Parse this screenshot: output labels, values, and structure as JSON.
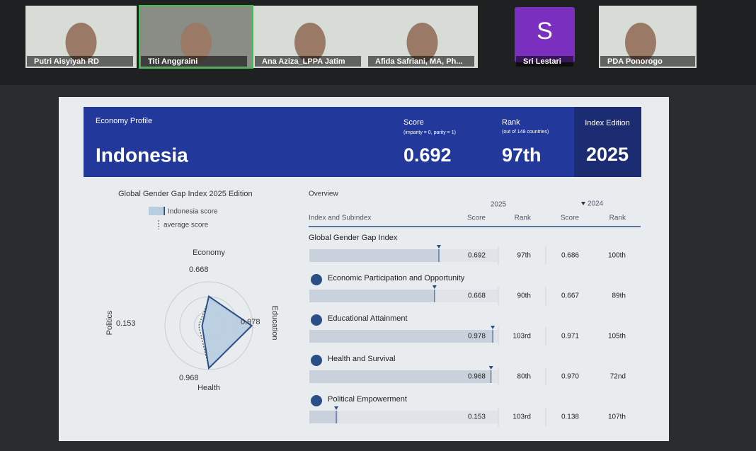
{
  "participants": [
    {
      "name": "Putri Aisyiyah RD"
    },
    {
      "name": "Titi Anggraini"
    },
    {
      "name": "Ana Aziza_LPPA Jatim"
    },
    {
      "name": "Afida Safriani, MA, Ph..."
    },
    {
      "name": "Sri Lestari",
      "avatar": "S"
    },
    {
      "name": "PDA Ponorogo"
    }
  ],
  "header": {
    "profile_label": "Economy Profile",
    "country": "Indonesia",
    "score_label": "Score",
    "score_note": "(imparity = 0, parity = 1)",
    "score": "0.692",
    "rank_label": "Rank",
    "rank_note": "(out of 148 countries)",
    "rank": "97th",
    "edition_label": "Index Edition",
    "edition": "2025"
  },
  "chart_data": {
    "type": "radar",
    "title": "Global Gender Gap Index 2025 Edition",
    "categories": [
      "Economy",
      "Education",
      "Health",
      "Politics"
    ],
    "series": [
      {
        "name": "Indonesia score",
        "color": "#2a4f87",
        "values": [
          0.668,
          0.978,
          0.968,
          0.153
        ]
      },
      {
        "name": "average score",
        "color": "#444444",
        "values": [
          0.611,
          0.956,
          0.96,
          0.23
        ]
      }
    ],
    "ylim": [
      0,
      1
    ]
  },
  "overview": {
    "title": "Overview",
    "year_current": "2025",
    "year_previous": "2024",
    "columns": [
      "Index and Subindex",
      "Score",
      "Rank",
      "Score",
      "Rank"
    ],
    "rows": [
      {
        "name": "Global Gender Gap Index",
        "score": 0.692,
        "average": 0.688,
        "rank": "97th",
        "score_prev": "0.686",
        "rank_prev": "100th"
      },
      {
        "name": "Economic Participation and Opportunity",
        "score": 0.668,
        "average": 0.665,
        "rank": "90th",
        "score_prev": "0.667",
        "rank_prev": "89th"
      },
      {
        "name": "Educational Attainment",
        "score": 0.978,
        "average": 0.974,
        "rank": "103rd",
        "score_prev": "0.971",
        "rank_prev": "105th"
      },
      {
        "name": "Health and Survival",
        "score": 0.968,
        "average": 0.965,
        "rank": "80th",
        "score_prev": "0.970",
        "rank_prev": "72nd"
      },
      {
        "name": "Political Empowerment",
        "score": 0.153,
        "average": 0.143,
        "rank": "103rd",
        "score_prev": "0.138",
        "rank_prev": "107th"
      }
    ]
  }
}
